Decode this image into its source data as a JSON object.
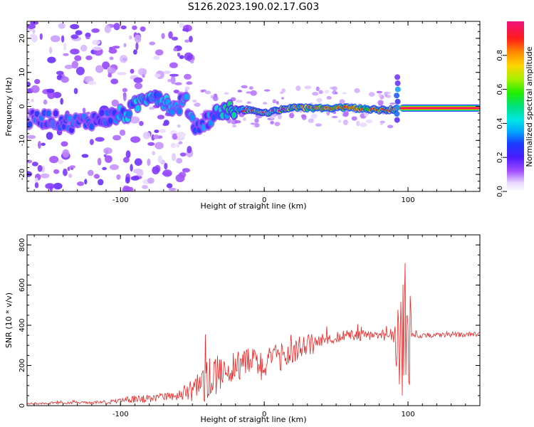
{
  "title": "S126.2023.190.02.17.G03",
  "chart_data": [
    {
      "type": "heatmap",
      "xlabel": "Height of straight line (km)",
      "ylabel": "Frequency (Hz)",
      "xlim": [
        -165,
        150
      ],
      "ylim": [
        -25,
        25
      ],
      "xticks": [
        -100,
        0,
        100
      ],
      "yticks": [
        -20,
        -10,
        0,
        10,
        20
      ],
      "xtick_labels": [
        "-100",
        "0",
        "100"
      ],
      "ytick_labels": [
        "-20",
        "-10",
        "0",
        "10",
        "20"
      ],
      "colorbar": {
        "label": "Normalized spectral amplitude",
        "range": [
          0,
          1
        ],
        "ticks": [
          0.0,
          0.2,
          0.4,
          0.6,
          0.8
        ],
        "tick_labels": [
          "0.0",
          "0.2",
          "0.4",
          "0.6",
          "0.8"
        ]
      },
      "ridge": {
        "x": [
          -165,
          -150,
          -135,
          -120,
          -105,
          -95,
          -85,
          -78,
          -70,
          -62,
          -55,
          -48,
          -40,
          -33,
          -28,
          -22,
          -15,
          -8,
          0,
          10,
          20,
          40,
          60,
          80,
          90,
          95,
          150
        ],
        "y": [
          -4,
          -3.5,
          -5,
          -4,
          -3,
          -2,
          2,
          4,
          2,
          -1,
          2,
          -6,
          -4,
          -2,
          -1,
          -1,
          -1,
          -1,
          -2,
          -1,
          -0.5,
          -0.5,
          -0.5,
          -1,
          -1,
          -0.5,
          -0.5
        ],
        "amplitude": [
          0.3,
          0.35,
          0.35,
          0.35,
          0.4,
          0.45,
          0.45,
          0.45,
          0.45,
          0.4,
          0.4,
          0.4,
          0.35,
          0.45,
          0.5,
          0.55,
          0.6,
          0.65,
          0.7,
          0.75,
          0.8,
          0.85,
          0.85,
          0.8,
          0.7,
          1.0,
          1.0
        ]
      }
    },
    {
      "type": "line",
      "xlabel": "Height of straight line (km)",
      "ylabel": "SNR (10 * v/v)",
      "xlim": [
        -165,
        150
      ],
      "ylim": [
        0,
        850
      ],
      "xticks": [
        -100,
        0,
        100
      ],
      "yticks": [
        0,
        200,
        400,
        600,
        800
      ],
      "xtick_labels": [
        "-100",
        "0",
        "100"
      ],
      "ytick_labels": [
        "0",
        "200",
        "400",
        "600",
        "800"
      ],
      "color": "#ee2222",
      "envelope": {
        "x": [
          -165,
          -130,
          -110,
          -100,
          -90,
          -80,
          -70,
          -60,
          -50,
          -40,
          -30,
          -20,
          -10,
          0,
          10,
          20,
          30,
          40,
          50,
          60,
          70,
          80,
          88,
          92,
          95,
          98,
          100,
          103,
          110,
          150
        ],
        "y": [
          10,
          15,
          15,
          25,
          30,
          35,
          40,
          50,
          70,
          120,
          170,
          200,
          220,
          200,
          240,
          270,
          300,
          320,
          340,
          350,
          350,
          350,
          350,
          330,
          320,
          300,
          350,
          350,
          350,
          355
        ],
        "noise": [
          5,
          6,
          8,
          15,
          20,
          20,
          20,
          25,
          50,
          110,
          90,
          80,
          80,
          80,
          70,
          60,
          60,
          40,
          30,
          30,
          25,
          25,
          40,
          150,
          300,
          350,
          400,
          20,
          12,
          12
        ]
      }
    }
  ]
}
